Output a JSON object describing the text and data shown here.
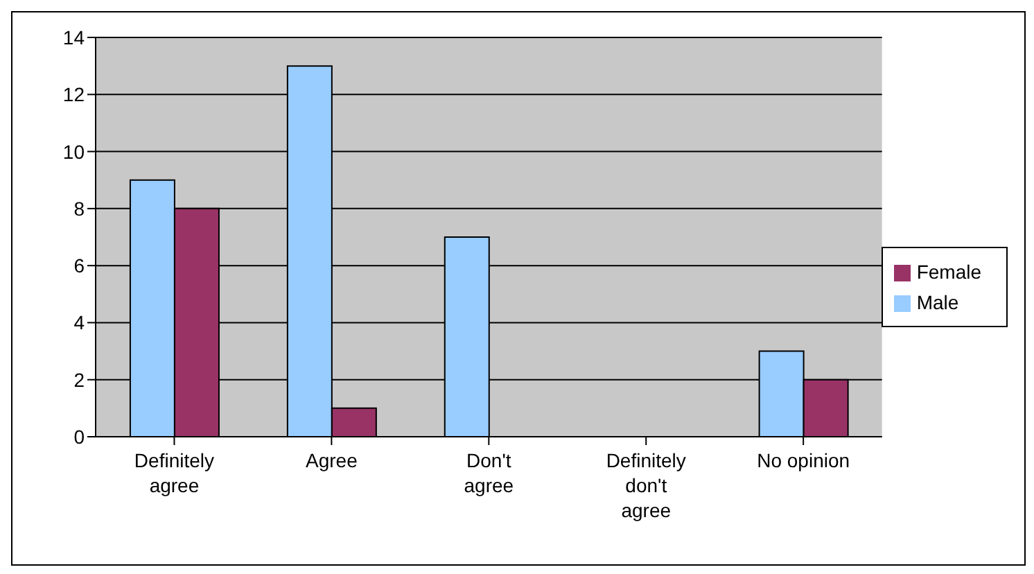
{
  "chart_data": {
    "type": "bar",
    "categories": [
      "Definitely agree",
      "Agree",
      "Don't agree",
      "Definitely don't agree",
      "No opinion"
    ],
    "series": [
      {
        "name": "Male",
        "color": "#99ccff",
        "values": [
          9,
          13,
          7,
          0,
          3
        ]
      },
      {
        "name": "Female",
        "color": "#993366",
        "values": [
          8,
          1,
          0,
          0,
          2
        ]
      }
    ],
    "ylim": [
      0,
      14
    ],
    "yticks": [
      0,
      2,
      4,
      6,
      8,
      10,
      12,
      14
    ],
    "grid": "y",
    "legend": "right"
  }
}
